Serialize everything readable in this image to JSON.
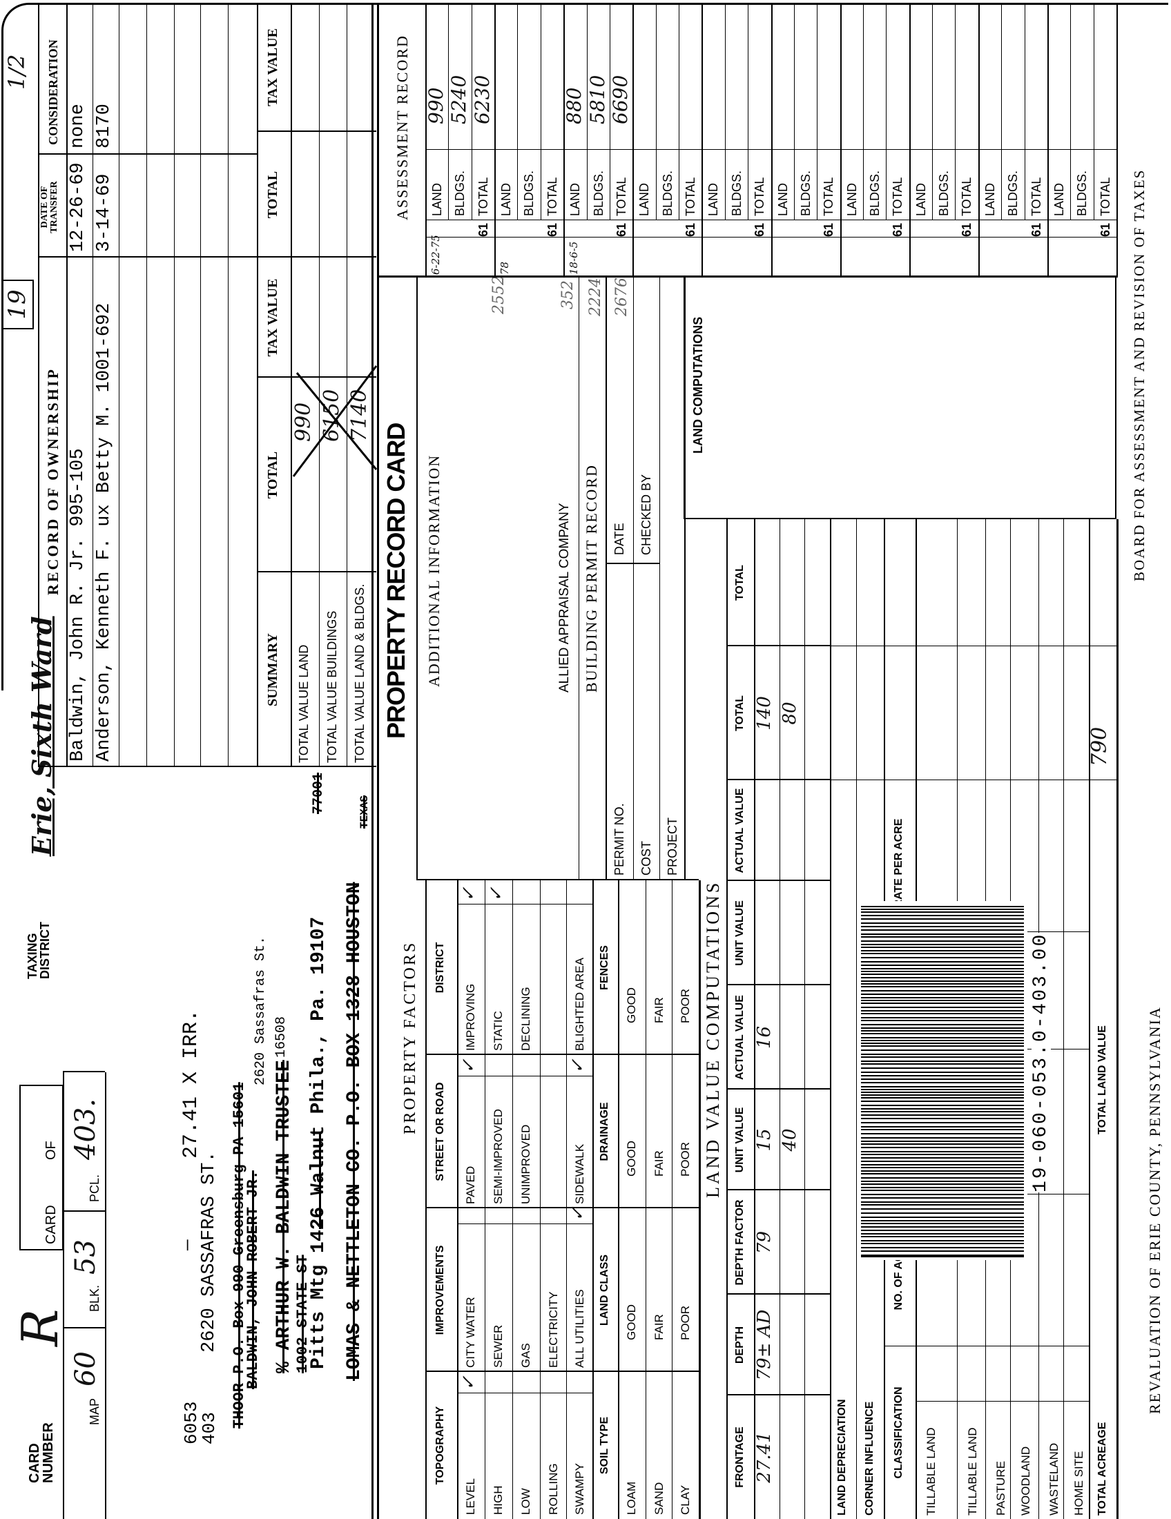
{
  "header": {
    "card_number_label": "CARD NUMBER",
    "card_letter": "R",
    "card_label": "CARD",
    "of_label": "OF",
    "taxing_district_label": "TAXING DISTRICT",
    "taxing_district": "Erie, Sixth Ward",
    "boxed_number": "19",
    "page_note": "1/2"
  },
  "parcel": {
    "map_label": "MAP",
    "map": "60",
    "blk_label": "BLK.",
    "blk": "53",
    "pcl_label": "PCL.",
    "pcl": "403."
  },
  "property": {
    "ids": [
      "6053",
      "403"
    ],
    "address": "2620 SASSAFRAS ST.",
    "dimensions": "27.41 X IRR.",
    "dash": "—",
    "current_address": [
      "2620 Sassafras St.",
      "16508"
    ],
    "mailing_history": [
      {
        "text": "THOOR P.O. Box 990 Greensburg PA 15601",
        "struck": true
      },
      {
        "text": "BALDWIN, JOHN ROBERT JR.",
        "struck": true
      },
      {
        "text": "% ARTHUR W. BALDWIN TRUSTEE",
        "struck": true
      },
      {
        "text": "1002 STATE ST",
        "struck": true
      },
      {
        "text": "Pitts Mtg 1426 Walnut Phila., Pa. 19107",
        "struck": false
      },
      {
        "text": "77001",
        "struck": true
      },
      {
        "text": "LOMAS & NETTLETON CO. P.O. BOX 1328 HOUSTON",
        "struck": true
      },
      {
        "text": "TEXAS",
        "struck": true
      }
    ]
  },
  "ownership": {
    "title": "RECORD OF OWNERSHIP",
    "date_header": "DATE OF TRANSFER",
    "consideration_header": "CONSIDERATION",
    "rows": [
      {
        "owner": "Baldwin, John R. Jr. 995-105",
        "date": "12-26-69",
        "consideration": "none"
      },
      {
        "owner": "Anderson, Kenneth F. ux Betty M. 1001-692",
        "date": "3-14-69",
        "consideration": "8170"
      }
    ]
  },
  "summary": {
    "title": "SUMMARY",
    "total_header": "TOTAL",
    "tax_value_header": "TAX VALUE",
    "rows": [
      {
        "label": "TOTAL VALUE LAND",
        "total": "990"
      },
      {
        "label": "TOTAL VALUE BUILDINGS",
        "total": "6150"
      },
      {
        "label": "TOTAL VALUE LAND & BLDGS.",
        "total": "7140"
      }
    ],
    "crossed_out": true,
    "extra_total_header": "TOTAL",
    "extra_tax_value_header": "TAX VALUE"
  },
  "property_factors": {
    "title": "PROPERTY FACTORS",
    "upper_headers": [
      "TOPOGRAPHY",
      "IMPROVEMENTS",
      "STREET OR ROAD",
      "DISTRICT"
    ],
    "upper_rows": [
      [
        {
          "label": "LEVEL",
          "checked": true
        },
        {
          "label": "CITY WATER",
          "checked": false
        },
        {
          "label": "PAVED",
          "checked": true
        },
        {
          "label": "IMPROVING",
          "checked": true
        }
      ],
      [
        {
          "label": "HIGH",
          "checked": false
        },
        {
          "label": "SEWER",
          "checked": false
        },
        {
          "label": "SEMI-IMPROVED",
          "checked": false
        },
        {
          "label": "STATIC",
          "checked": true
        }
      ],
      [
        {
          "label": "LOW",
          "checked": false
        },
        {
          "label": "GAS",
          "checked": false
        },
        {
          "label": "UNIMPROVED",
          "checked": false
        },
        {
          "label": "DECLINING",
          "checked": false
        }
      ],
      [
        {
          "label": "ROLLING",
          "checked": false
        },
        {
          "label": "ELECTRICITY",
          "checked": false
        },
        {
          "label": "",
          "checked": false
        },
        {
          "label": "",
          "checked": false
        }
      ],
      [
        {
          "label": "SWAMPY",
          "checked": false
        },
        {
          "label": "ALL UTILITIES",
          "checked": true
        },
        {
          "label": "SIDEWALK",
          "checked": true
        },
        {
          "label": "BLIGHTED AREA",
          "checked": false
        }
      ]
    ],
    "lower_headers": [
      "SOIL TYPE",
      "LAND CLASS",
      "DRAINAGE",
      "FENCES"
    ],
    "lower_rows": [
      [
        "LOAM",
        "GOOD",
        "GOOD",
        "GOOD"
      ],
      [
        "SAND",
        "FAIR",
        "FAIR",
        "FAIR"
      ],
      [
        "CLAY",
        "POOR",
        "POOR",
        "POOR"
      ]
    ]
  },
  "record_card": {
    "title": "PROPERTY RECORD CARD",
    "additional_info_label": "ADDITIONAL INFORMATION",
    "additional_info_notes": [
      "2552",
      "352",
      "2224",
      "2676"
    ],
    "company": "ALLIED APPRAISAL COMPANY",
    "building_permit_title": "BUILDING PERMIT RECORD",
    "permit_labels": [
      "PERMIT NO.",
      "COST",
      "PROJECT"
    ],
    "permit_right_labels": [
      "DATE",
      "CHECKED BY"
    ],
    "land_computations_label": "LAND COMPUTATIONS"
  },
  "land_value_computations": {
    "title": "LAND VALUE COMPUTATIONS",
    "headers": [
      "FRONTAGE",
      "DEPTH",
      "DEPTH FACTOR",
      "UNIT VALUE",
      "ACTUAL VALUE",
      "UNIT VALUE",
      "ACTUAL VALUE",
      "TOTAL",
      "TOTAL"
    ],
    "rows": [
      [
        "27.41",
        "79± AD",
        "79",
        "15",
        "16",
        "",
        "",
        "140",
        ""
      ],
      [
        "",
        "",
        "",
        "40",
        "",
        "",
        "",
        "80",
        ""
      ]
    ],
    "land_depreciation_label": "LAND DEPRECIATION",
    "corner_influence_label": "CORNER INFLUENCE",
    "classification_headers": [
      "CLASSIFICATION",
      "NO. OF ACRES",
      "RATE PER ACRE",
      "NO. OF ACRES",
      "RATE PER ACRE"
    ],
    "classification_rows": [
      "TILLABLE LAND",
      "TILLABLE LAND",
      "PASTURE",
      "WOODLAND",
      "WASTELAND",
      "HOME SITE"
    ],
    "total_acreage_label": "TOTAL ACREAGE",
    "total_land_value_label": "TOTAL LAND VALUE",
    "total_land_value": "790"
  },
  "barcode": {
    "text": "19-060-053.0-403.00"
  },
  "assessment": {
    "title": "ASSESSMENT RECORD",
    "row_labels": [
      "LAND",
      "BLDGS.",
      "TOTAL"
    ],
    "year_prefix": "61",
    "groups": [
      {
        "date": "6-22-75",
        "land": "990",
        "bldgs": "5240",
        "total": "6230"
      },
      {
        "date": "78"
      },
      {
        "date": "18-6-5",
        "land": "880",
        "bldgs": "5810",
        "total": "6690"
      },
      {},
      {},
      {},
      {},
      {},
      {},
      {}
    ]
  },
  "footer": {
    "left": "REVALUATION OF ERIE COUNTY, PENNSYLVANIA",
    "right": "BOARD FOR ASSESSMENT AND REVISION OF TAXES"
  }
}
